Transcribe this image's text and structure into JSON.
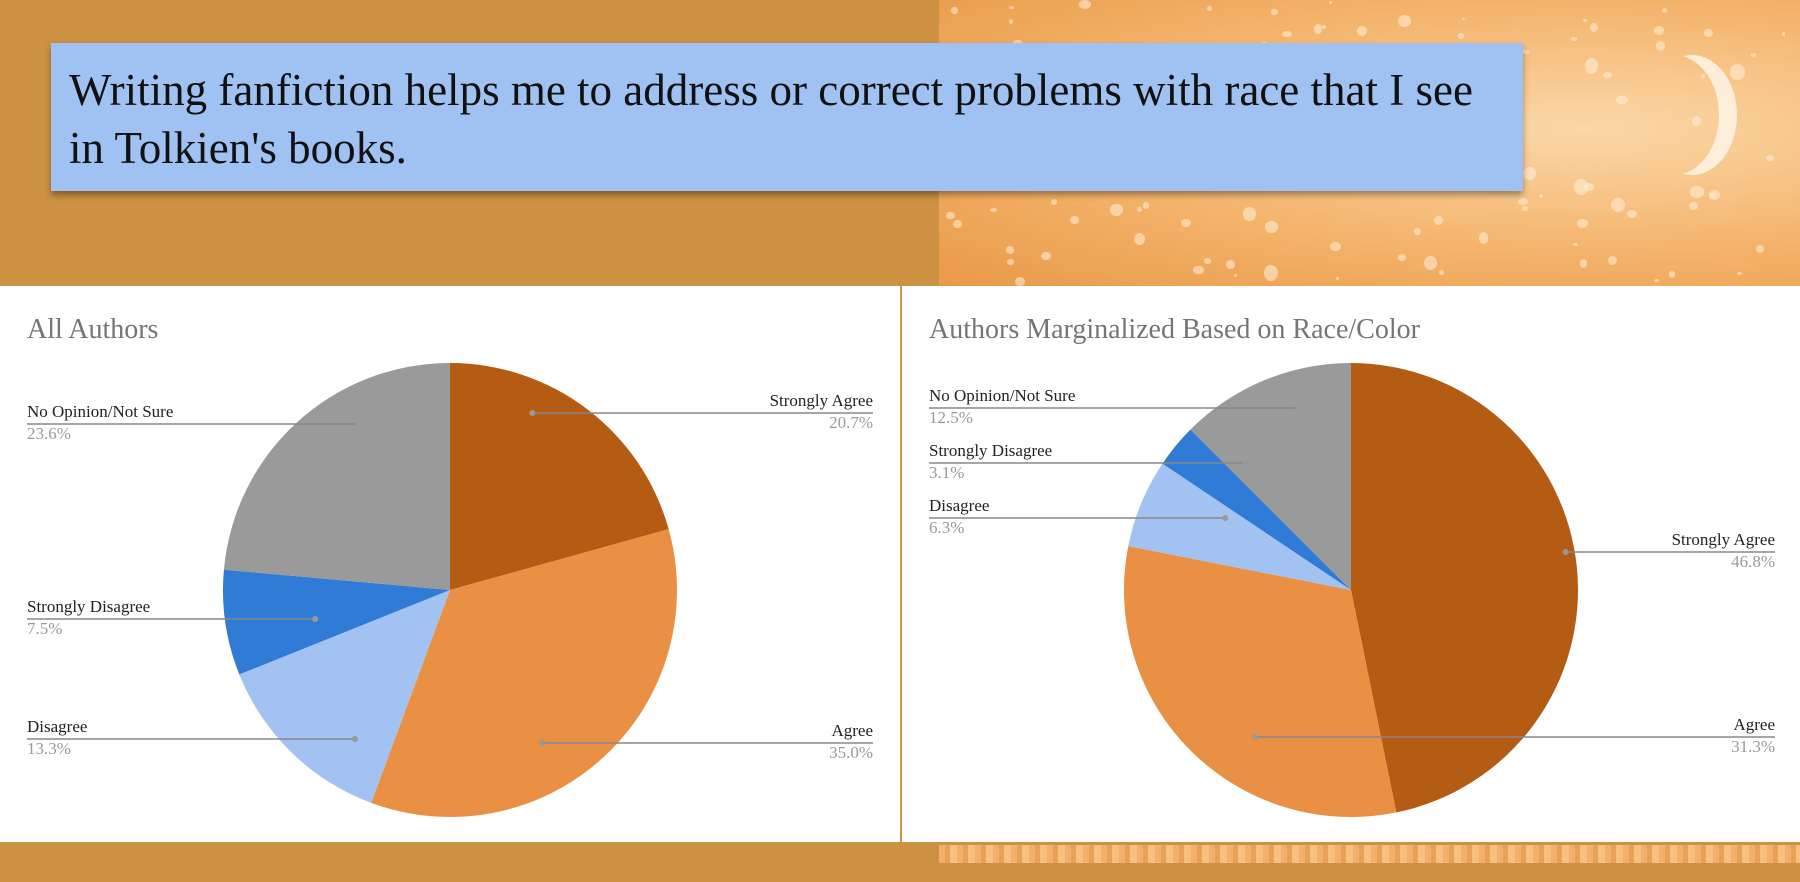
{
  "slide": {
    "title": "Writing fanfiction helps me to address or correct problems with race that I see in Tolkien's books."
  },
  "colors": {
    "background": "#cc9143",
    "title_box": "#a0c2f2",
    "strongly_agree": "#b45b14",
    "agree": "#e99044",
    "disagree": "#a2c3f1",
    "strongly_disagree": "#2f7bd6",
    "no_opinion": "#9a9a9a"
  },
  "chart_data": [
    {
      "type": "pie",
      "title": "All Authors",
      "slices": [
        {
          "label": "Strongly Agree",
          "pct_label": "20.7%",
          "value": 20.7,
          "color": "#b45b14"
        },
        {
          "label": "Agree",
          "pct_label": "35.0%",
          "value": 35.0,
          "color": "#e99044"
        },
        {
          "label": "Disagree",
          "pct_label": "13.3%",
          "value": 13.3,
          "color": "#a2c3f1"
        },
        {
          "label": "Strongly Disagree",
          "pct_label": "7.5%",
          "value": 7.5,
          "color": "#2f7bd6"
        },
        {
          "label": "No Opinion/Not Sure",
          "pct_label": "23.6%",
          "value": 23.6,
          "color": "#9a9a9a"
        }
      ]
    },
    {
      "type": "pie",
      "title": "Authors Marginalized Based on Race/Color",
      "slices": [
        {
          "label": "Strongly Agree",
          "pct_label": "46.8%",
          "value": 46.8,
          "color": "#b45b14"
        },
        {
          "label": "Agree",
          "pct_label": "31.3%",
          "value": 31.3,
          "color": "#e99044"
        },
        {
          "label": "Disagree",
          "pct_label": "6.3%",
          "value": 6.3,
          "color": "#a2c3f1"
        },
        {
          "label": "Strongly Disagree",
          "pct_label": "3.1%",
          "value": 3.1,
          "color": "#2f7bd6"
        },
        {
          "label": "No Opinion/Not Sure",
          "pct_label": "12.5%",
          "value": 12.5,
          "color": "#9a9a9a"
        }
      ]
    }
  ]
}
